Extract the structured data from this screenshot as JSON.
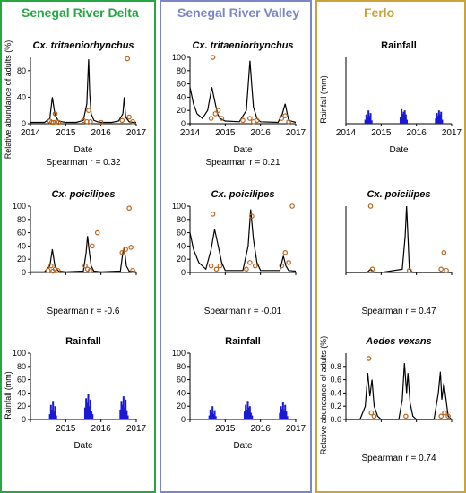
{
  "colors": {
    "delta": "#27a644",
    "valley": "#7b86c8",
    "ferlo": "#c9a43a",
    "rainfall_bar": "#1a1ad6",
    "abundance_line": "#000000",
    "observed_point": "#b5651d"
  },
  "panels": [
    {
      "title": "Senegal River Delta",
      "color_key": "delta",
      "charts": [
        {
          "type": "line",
          "title": "Cx. tritaeniorhynchus",
          "xlabel": "Date",
          "ylabel": "Relative abundance of adults (%)",
          "ylim": [
            0,
            100
          ],
          "yticks": [
            0,
            40,
            80
          ],
          "xlim": [
            2014,
            2017
          ],
          "xticks": [
            "2014",
            "2015",
            "2016",
            "2017"
          ],
          "stat_label": "Spearman r = ",
          "stat_value": "0.32",
          "series": [
            {
              "kind": "line",
              "x": [
                2014.0,
                2014.4,
                2014.55,
                2014.62,
                2014.7,
                2014.8,
                2014.9,
                2015.0,
                2015.3,
                2015.5,
                2015.6,
                2015.65,
                2015.68,
                2015.72,
                2015.8,
                2015.9,
                2016.0,
                2016.3,
                2016.5,
                2016.62,
                2016.66,
                2016.7,
                2016.8,
                2016.9,
                2017.0
              ],
              "y": [
                2,
                2,
                8,
                40,
                12,
                4,
                3,
                2,
                2,
                5,
                30,
                97,
                45,
                15,
                5,
                3,
                2,
                2,
                4,
                15,
                40,
                10,
                3,
                2,
                2
              ]
            },
            {
              "kind": "points",
              "x": [
                2014.55,
                2014.6,
                2014.65,
                2014.7,
                2014.75,
                2014.8,
                2015.5,
                2015.6,
                2015.65,
                2015.7,
                2016.0,
                2016.6,
                2016.75,
                2016.8,
                2016.9
              ],
              "y": [
                4,
                2,
                2,
                15,
                3,
                2,
                5,
                3,
                20,
                3,
                2,
                5,
                98,
                10,
                3
              ]
            }
          ]
        },
        {
          "type": "line",
          "title": "Cx. poicilipes",
          "xlabel": "",
          "ylabel": "",
          "ylim": [
            0,
            100
          ],
          "yticks": [
            0,
            20,
            40,
            60,
            80,
            100
          ],
          "xlim": [
            2014,
            2017
          ],
          "xticks": [],
          "stat_label": "Spearman r = ",
          "stat_value": "-0.6",
          "series": [
            {
              "kind": "line",
              "x": [
                2014.0,
                2014.4,
                2014.55,
                2014.62,
                2014.7,
                2014.8,
                2015.0,
                2015.5,
                2015.58,
                2015.62,
                2015.66,
                2015.72,
                2015.8,
                2016.0,
                2016.55,
                2016.62,
                2016.66,
                2016.72,
                2016.8,
                2017.0
              ],
              "y": [
                1,
                1,
                10,
                35,
                8,
                2,
                1,
                2,
                30,
                55,
                35,
                10,
                2,
                1,
                2,
                30,
                38,
                10,
                2,
                1
              ]
            },
            {
              "kind": "points",
              "x": [
                2014.5,
                2014.58,
                2014.64,
                2014.7,
                2014.78,
                2015.55,
                2015.62,
                2015.7,
                2015.75,
                2015.9,
                2016.6,
                2016.7,
                2016.8,
                2016.85,
                2016.9
              ],
              "y": [
                3,
                10,
                2,
                5,
                3,
                10,
                5,
                3,
                40,
                60,
                30,
                35,
                97,
                38,
                3
              ]
            }
          ]
        },
        {
          "type": "bar",
          "title": "Rainfall",
          "xlabel": "Date",
          "ylabel": "Rainfall (mm)",
          "ylim": [
            0,
            100
          ],
          "yticks": [
            0,
            20,
            40,
            60,
            80,
            100
          ],
          "xlim": [
            2014,
            2017
          ],
          "xticks": [
            "",
            "2015",
            "2016",
            "2017"
          ],
          "series": [
            {
              "kind": "bars",
              "x": [
                2014.55,
                2014.58,
                2014.61,
                2014.64,
                2014.67,
                2014.7,
                2014.73,
                2015.55,
                2015.58,
                2015.61,
                2015.64,
                2015.67,
                2015.7,
                2015.73,
                2015.76,
                2016.55,
                2016.58,
                2016.61,
                2016.64,
                2016.67,
                2016.7,
                2016.73,
                2016.76
              ],
              "y": [
                8,
                22,
                15,
                28,
                12,
                20,
                6,
                18,
                32,
                25,
                38,
                20,
                30,
                12,
                8,
                15,
                28,
                22,
                35,
                18,
                30,
                14,
                6
              ]
            }
          ]
        }
      ]
    },
    {
      "title": "Senegal River Valley",
      "color_key": "valley",
      "charts": [
        {
          "type": "line",
          "title": "Cx. tritaeniorhynchus",
          "xlabel": "Date",
          "ylabel": "",
          "ylim": [
            0,
            100
          ],
          "yticks": [
            0,
            20,
            40,
            60,
            80,
            100
          ],
          "xlim": [
            2014,
            2017
          ],
          "xticks": [
            "2014",
            "2015",
            "2016",
            "2017"
          ],
          "stat_label": "Spearman r = ",
          "stat_value": "0.21",
          "series": [
            {
              "kind": "line",
              "x": [
                2014.0,
                2014.1,
                2014.2,
                2014.35,
                2014.5,
                2014.62,
                2014.7,
                2014.78,
                2014.85,
                2015.0,
                2015.4,
                2015.6,
                2015.7,
                2015.75,
                2015.8,
                2015.9,
                2016.0,
                2016.5,
                2016.62,
                2016.7,
                2016.8,
                2017.0
              ],
              "y": [
                55,
                30,
                15,
                8,
                20,
                55,
                35,
                15,
                8,
                4,
                3,
                20,
                95,
                60,
                25,
                8,
                3,
                2,
                15,
                30,
                5,
                2
              ]
            },
            {
              "kind": "points",
              "x": [
                2014.6,
                2014.65,
                2014.72,
                2014.8,
                2014.9,
                2015.5,
                2015.7,
                2015.8,
                2015.9,
                2016.6,
                2016.7,
                2016.8
              ],
              "y": [
                8,
                100,
                15,
                20,
                8,
                5,
                8,
                3,
                5,
                8,
                12,
                3
              ]
            }
          ]
        },
        {
          "type": "line",
          "title": "Cx. poicilipes",
          "xlabel": "",
          "ylabel": "",
          "ylim": [
            0,
            100
          ],
          "yticks": [
            0,
            20,
            40,
            60,
            80,
            100
          ],
          "xlim": [
            2014,
            2017
          ],
          "xticks": [],
          "stat_label": "Spearman r = ",
          "stat_value": "-0.01",
          "series": [
            {
              "kind": "line",
              "x": [
                2014.0,
                2014.1,
                2014.25,
                2014.45,
                2014.6,
                2014.7,
                2014.8,
                2014.9,
                2015.0,
                2015.5,
                2015.65,
                2015.72,
                2015.8,
                2015.9,
                2016.0,
                2016.55,
                2016.65,
                2016.72,
                2016.8,
                2017.0
              ],
              "y": [
                60,
                35,
                15,
                5,
                35,
                65,
                40,
                15,
                3,
                3,
                40,
                95,
                50,
                15,
                3,
                3,
                25,
                10,
                3,
                2
              ]
            },
            {
              "kind": "points",
              "x": [
                2014.6,
                2014.65,
                2014.75,
                2014.85,
                2015.6,
                2015.7,
                2015.75,
                2015.85,
                2016.6,
                2016.7,
                2016.8,
                2016.9
              ],
              "y": [
                10,
                88,
                5,
                10,
                5,
                15,
                85,
                10,
                10,
                30,
                15,
                100
              ]
            }
          ]
        },
        {
          "type": "bar",
          "title": "Rainfall",
          "xlabel": "Date",
          "ylabel": "",
          "ylim": [
            0,
            100
          ],
          "yticks": [
            0,
            20,
            40,
            60,
            80,
            100
          ],
          "xlim": [
            2014,
            2017
          ],
          "xticks": [
            "",
            "2015",
            "2016",
            "2017"
          ],
          "series": [
            {
              "kind": "bars",
              "x": [
                2014.55,
                2014.58,
                2014.61,
                2014.64,
                2014.67,
                2014.7,
                2014.73,
                2015.55,
                2015.58,
                2015.61,
                2015.64,
                2015.67,
                2015.7,
                2015.73,
                2015.76,
                2016.55,
                2016.58,
                2016.61,
                2016.64,
                2016.67,
                2016.7,
                2016.73,
                2016.76
              ],
              "y": [
                6,
                15,
                10,
                20,
                8,
                14,
                5,
                12,
                22,
                15,
                28,
                18,
                20,
                10,
                6,
                10,
                20,
                16,
                26,
                14,
                22,
                12,
                5
              ]
            }
          ]
        }
      ]
    },
    {
      "title": "Ferlo",
      "color_key": "ferlo",
      "charts": [
        {
          "type": "bar",
          "title": "Rainfall",
          "xlabel": "Date",
          "ylabel": "Rainfall (mm)",
          "ylim": [
            0,
            100
          ],
          "yticks": [],
          "xlim": [
            2014,
            2017
          ],
          "xticks": [
            "2014",
            "2015",
            "2016",
            "2017"
          ],
          "series": [
            {
              "kind": "bars",
              "x": [
                2014.55,
                2014.58,
                2014.61,
                2014.64,
                2014.67,
                2014.7,
                2014.73,
                2015.55,
                2015.58,
                2015.61,
                2015.64,
                2015.67,
                2015.7,
                2015.73,
                2016.55,
                2016.58,
                2016.61,
                2016.64,
                2016.67,
                2016.7,
                2016.73
              ],
              "y": [
                6,
                14,
                10,
                20,
                12,
                16,
                5,
                10,
                22,
                15,
                18,
                20,
                14,
                6,
                8,
                16,
                12,
                20,
                14,
                18,
                6
              ]
            }
          ]
        },
        {
          "type": "line",
          "title": "Cx. poicilipes",
          "xlabel": "",
          "ylabel": "",
          "ylim": [
            0,
            100
          ],
          "yticks": [],
          "xlim": [
            2014,
            2017
          ],
          "xticks": [],
          "stat_label": "Spearman r = ",
          "stat_value": "0.47",
          "series": [
            {
              "kind": "line",
              "x": [
                2014.0,
                2014.6,
                2014.7,
                2014.8,
                2015.0,
                2015.6,
                2015.68,
                2015.72,
                2015.76,
                2015.8,
                2015.9,
                2016.0,
                2017.0
              ],
              "y": [
                0,
                0,
                5,
                0,
                0,
                5,
                55,
                100,
                55,
                5,
                0,
                0,
                0
              ]
            },
            {
              "kind": "points",
              "x": [
                2014.7,
                2014.75,
                2015.8,
                2016.7,
                2016.78,
                2016.85
              ],
              "y": [
                100,
                5,
                3,
                5,
                30,
                3
              ]
            }
          ]
        },
        {
          "type": "line",
          "title": "Aedes vexans",
          "xlabel": "",
          "ylabel": "Relative abundance of adults (%)",
          "ylim": [
            0,
            1.0
          ],
          "yticks": [
            "0.0",
            "0.2",
            "0.4",
            "0.6",
            "0.8"
          ],
          "xlim": [
            2014,
            2017
          ],
          "xticks": [],
          "stat_label": "Spearman r = ",
          "stat_value": "0.74",
          "series": [
            {
              "kind": "line",
              "x": [
                2014.0,
                2014.4,
                2014.55,
                2014.62,
                2014.68,
                2014.74,
                2014.8,
                2014.9,
                2015.0,
                2015.5,
                2015.6,
                2015.66,
                2015.72,
                2015.76,
                2015.82,
                2015.9,
                2016.0,
                2016.5,
                2016.62,
                2016.68,
                2016.72,
                2016.78,
                2016.9,
                2017.0
              ],
              "y": [
                0,
                0,
                0.2,
                0.7,
                0.35,
                0.6,
                0.2,
                0.05,
                0,
                0,
                0.3,
                0.85,
                0.4,
                0.7,
                0.25,
                0.05,
                0,
                0,
                0.4,
                0.72,
                0.3,
                0.55,
                0.05,
                0
              ]
            },
            {
              "kind": "points",
              "x": [
                2014.65,
                2014.72,
                2014.8,
                2015.7,
                2016.7,
                2016.8,
                2016.9
              ],
              "y": [
                0.92,
                0.1,
                0.05,
                0.05,
                0.05,
                0.1,
                0.05
              ]
            }
          ]
        }
      ]
    }
  ]
}
